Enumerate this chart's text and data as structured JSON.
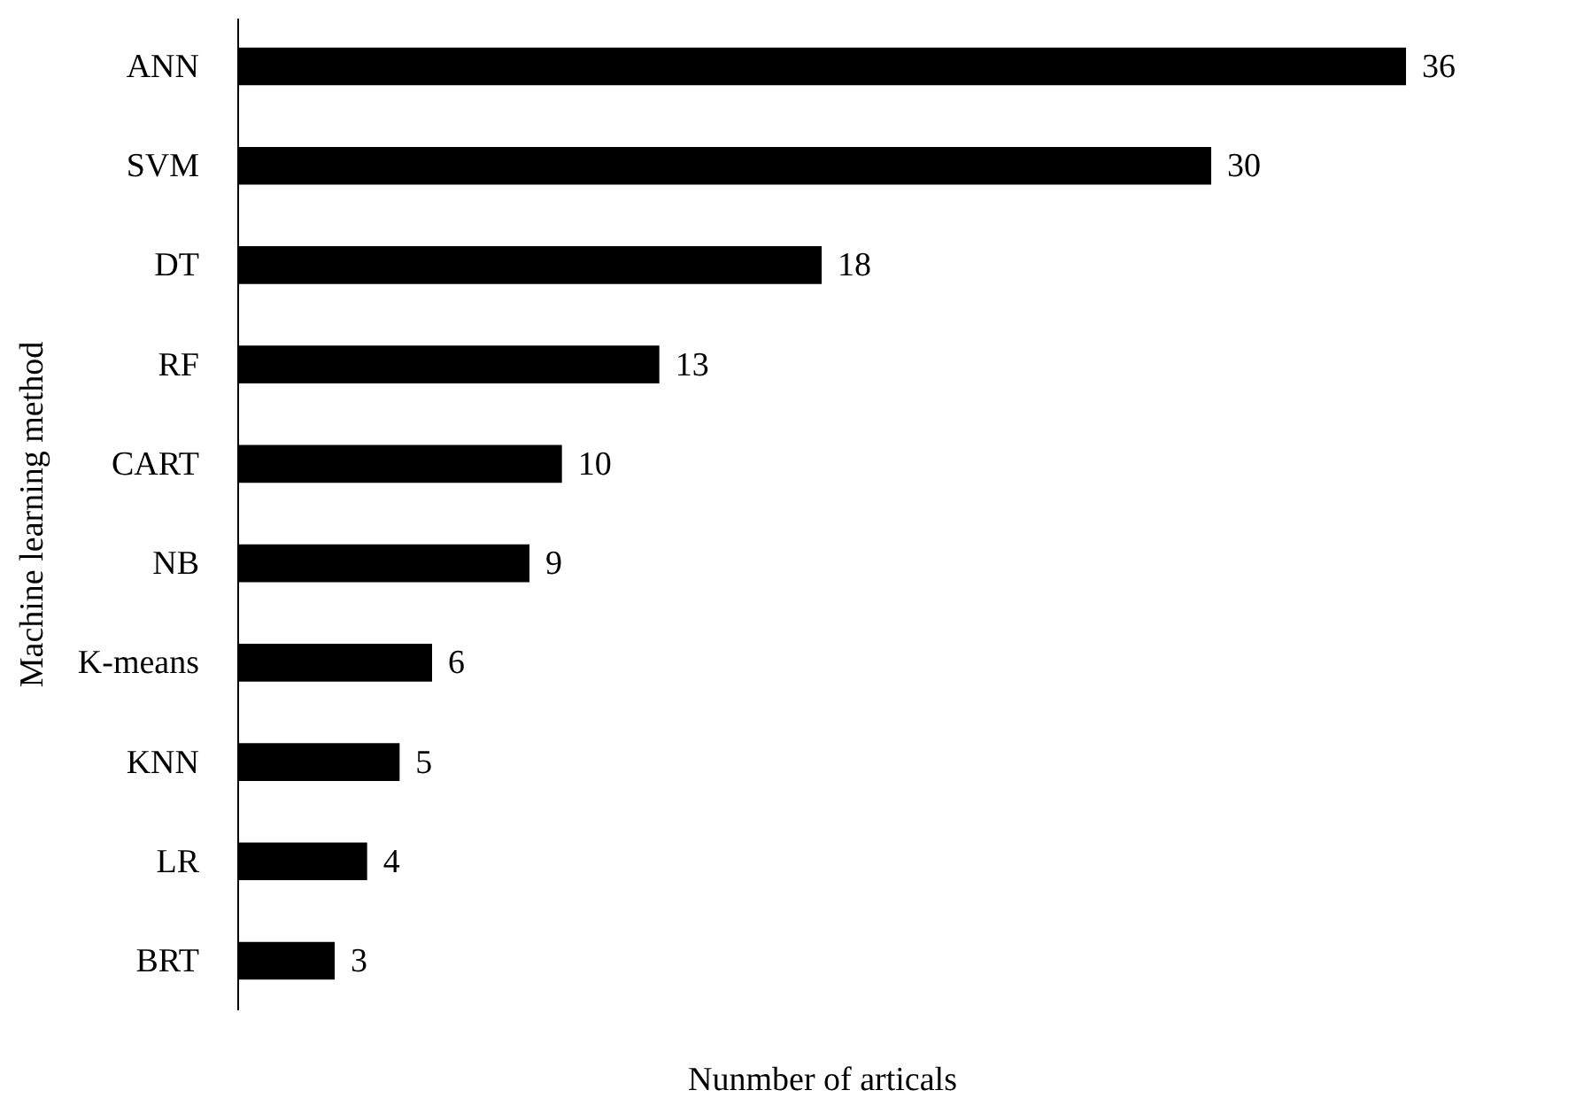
{
  "chart_data": {
    "type": "bar",
    "orientation": "horizontal",
    "xlabel": "Nunmber of articals",
    "ylabel": "Machine learning method",
    "categories": [
      "ANN",
      "SVM",
      "DT",
      "RF",
      "CART",
      "NB",
      "K-means",
      "KNN",
      "LR",
      "BRT"
    ],
    "values": [
      36,
      30,
      18,
      13,
      10,
      9,
      6,
      5,
      4,
      3
    ],
    "color": "#000000",
    "data_labels": true
  }
}
